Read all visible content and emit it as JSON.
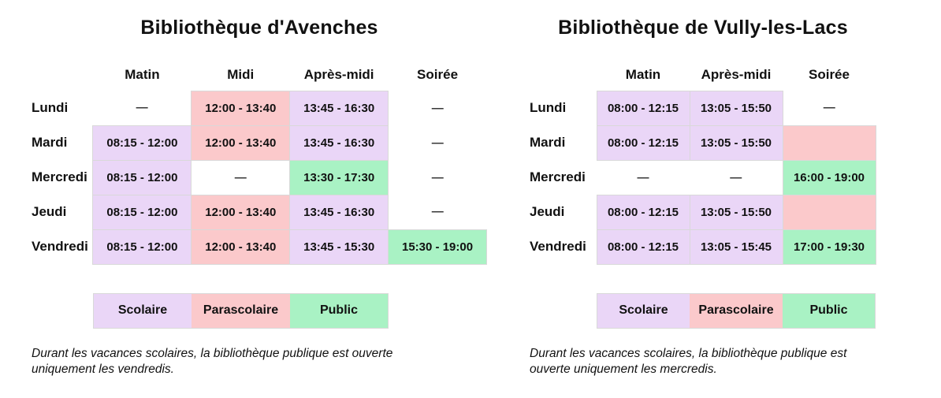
{
  "colors": {
    "scolaire": "#EAD6F7",
    "parascolaire": "#FBC9CB",
    "public": "#A9F2C4",
    "closed": "#FFFFFF",
    "cell_border": "#D9D9D9",
    "text": "#111111"
  },
  "panels": [
    {
      "id": "avenches",
      "title": "Bibliothèque d'Avenches",
      "columns": [
        "Matin",
        "Midi",
        "Après-midi",
        "Soirée"
      ],
      "rows": [
        {
          "day": "Lundi",
          "cells": [
            {
              "text": "—",
              "type": "closed"
            },
            {
              "text": "12:00 - 13:40",
              "type": "parascolaire"
            },
            {
              "text": "13:45 - 16:30",
              "type": "scolaire"
            },
            {
              "text": "—",
              "type": "closed"
            }
          ]
        },
        {
          "day": "Mardi",
          "cells": [
            {
              "text": "08:15 - 12:00",
              "type": "scolaire"
            },
            {
              "text": "12:00 - 13:40",
              "type": "parascolaire"
            },
            {
              "text": "13:45 - 16:30",
              "type": "scolaire"
            },
            {
              "text": "—",
              "type": "closed"
            }
          ]
        },
        {
          "day": "Mercredi",
          "cells": [
            {
              "text": "08:15 - 12:00",
              "type": "scolaire"
            },
            {
              "text": "—",
              "type": "closed"
            },
            {
              "text": "13:30 - 17:30",
              "type": "public"
            },
            {
              "text": "—",
              "type": "closed"
            }
          ]
        },
        {
          "day": "Jeudi",
          "cells": [
            {
              "text": "08:15 - 12:00",
              "type": "scolaire"
            },
            {
              "text": "12:00 - 13:40",
              "type": "parascolaire"
            },
            {
              "text": "13:45 - 16:30",
              "type": "scolaire"
            },
            {
              "text": "—",
              "type": "closed"
            }
          ]
        },
        {
          "day": "Vendredi",
          "cells": [
            {
              "text": "08:15 - 12:00",
              "type": "scolaire"
            },
            {
              "text": "12:00 - 13:40",
              "type": "parascolaire"
            },
            {
              "text": "13:45 - 15:30",
              "type": "scolaire"
            },
            {
              "text": "15:30 - 19:00",
              "type": "public"
            }
          ]
        }
      ],
      "legend": [
        {
          "label": "Scolaire",
          "type": "scolaire"
        },
        {
          "label": "Parascolaire",
          "type": "parascolaire"
        },
        {
          "label": "Public",
          "type": "public"
        }
      ],
      "note": "Durant les vacances scolaires, la bibliothèque publique est ouverte uniquement les vendredis."
    },
    {
      "id": "vully-les-lacs",
      "title": "Bibliothèque de Vully-les-Lacs",
      "columns": [
        "Matin",
        "Après-midi",
        "Soirée"
      ],
      "rows": [
        {
          "day": "Lundi",
          "cells": [
            {
              "text": "08:00 - 12:15",
              "type": "scolaire"
            },
            {
              "text": "13:05 - 15:50",
              "type": "scolaire"
            },
            {
              "text": "—",
              "type": "closed"
            }
          ]
        },
        {
          "day": "Mardi",
          "cells": [
            {
              "text": "08:00 - 12:15",
              "type": "scolaire"
            },
            {
              "text": "13:05 - 15:50",
              "type": "scolaire"
            },
            {
              "text": "",
              "type": "parascolaire"
            }
          ]
        },
        {
          "day": "Mercredi",
          "cells": [
            {
              "text": "—",
              "type": "closed"
            },
            {
              "text": "—",
              "type": "closed"
            },
            {
              "text": "16:00 - 19:00",
              "type": "public"
            }
          ]
        },
        {
          "day": "Jeudi",
          "cells": [
            {
              "text": "08:00 - 12:15",
              "type": "scolaire"
            },
            {
              "text": "13:05 - 15:50",
              "type": "scolaire"
            },
            {
              "text": "",
              "type": "parascolaire"
            }
          ]
        },
        {
          "day": "Vendredi",
          "cells": [
            {
              "text": "08:00 - 12:15",
              "type": "scolaire"
            },
            {
              "text": "13:05 - 15:45",
              "type": "scolaire"
            },
            {
              "text": "17:00 - 19:30",
              "type": "public"
            }
          ]
        }
      ],
      "legend": [
        {
          "label": "Scolaire",
          "type": "scolaire"
        },
        {
          "label": "Parascolaire",
          "type": "parascolaire"
        },
        {
          "label": "Public",
          "type": "public"
        }
      ],
      "note": "Durant les vacances scolaires, la bibliothèque publique est ouverte uniquement les mercredis."
    }
  ]
}
